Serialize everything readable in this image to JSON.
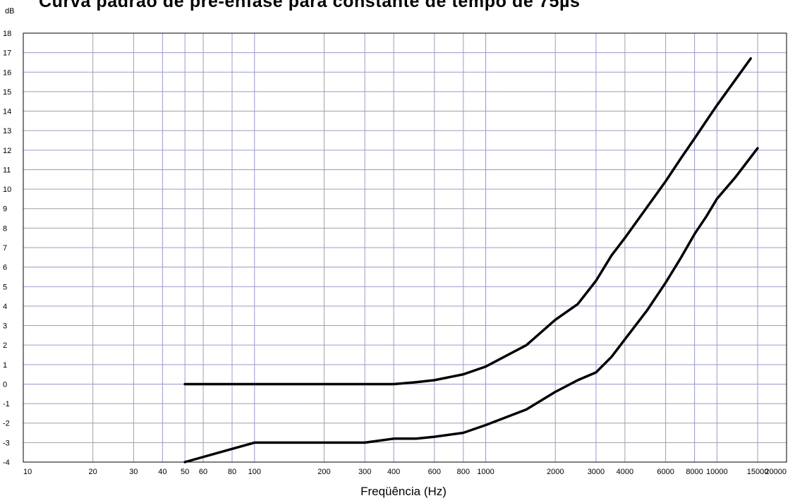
{
  "chart_data": {
    "type": "line",
    "title": "Curva padrão de pré-ênfase para constante de tempo de 75µs",
    "xlabel": "Freqüência (Hz)",
    "ylabel": "dB",
    "x_scale": "log",
    "xlim": [
      10,
      20000
    ],
    "ylim": [
      -4,
      18
    ],
    "x_ticks": [
      10,
      20,
      30,
      40,
      50,
      60,
      80,
      100,
      200,
      300,
      400,
      600,
      800,
      1000,
      2000,
      3000,
      4000,
      6000,
      8000,
      10000,
      15000,
      20000
    ],
    "y_ticks": [
      -4,
      -3,
      -2,
      -1,
      0,
      1,
      2,
      3,
      4,
      5,
      6,
      7,
      8,
      9,
      10,
      11,
      12,
      13,
      14,
      15,
      16,
      17,
      18
    ],
    "grid": true,
    "grid_color": "#9a9ad8",
    "line_color": "#000000",
    "series": [
      {
        "x": [
          50,
          100,
          200,
          300,
          400,
          500,
          600,
          800,
          1000,
          1500,
          2000,
          2500,
          3000,
          3500,
          4000,
          5000,
          6000,
          7000,
          8000,
          9000,
          10000,
          12000,
          14000
        ],
        "y": [
          0,
          0,
          0,
          0,
          0,
          0.1,
          0.2,
          0.5,
          0.9,
          2.0,
          3.3,
          4.1,
          5.3,
          6.6,
          7.5,
          9.1,
          10.4,
          11.6,
          12.6,
          13.5,
          14.3,
          15.6,
          16.7
        ]
      },
      {
        "x": [
          50,
          100,
          200,
          300,
          400,
          500,
          600,
          800,
          1000,
          1500,
          2000,
          2500,
          3000,
          3500,
          4000,
          5000,
          6000,
          7000,
          8000,
          9000,
          10000,
          12000,
          15000
        ],
        "y": [
          -4,
          -3,
          -3,
          -3,
          -2.8,
          -2.8,
          -2.7,
          -2.5,
          -2.1,
          -1.3,
          -0.4,
          0.2,
          0.6,
          1.4,
          2.3,
          3.8,
          5.2,
          6.5,
          7.7,
          8.6,
          9.5,
          10.6,
          12.1
        ]
      }
    ]
  }
}
